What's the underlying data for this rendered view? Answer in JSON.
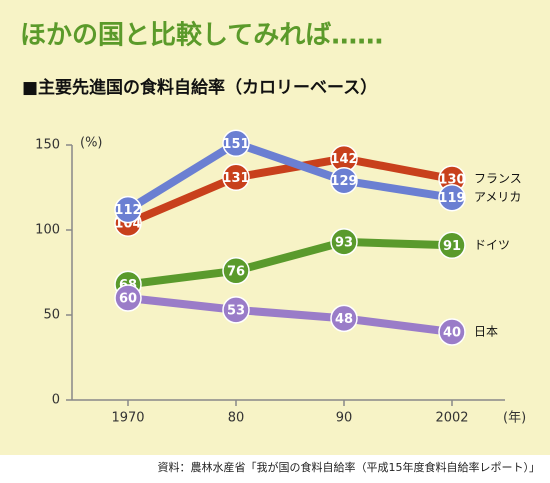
{
  "title": "ほかの国と比較してみれば……",
  "chart_data": {
    "type": "line",
    "subtitle": "■主要先進国の食料自給率（カロリーベース）",
    "ylabel": "(%)",
    "xlabel": "(年)",
    "categories": [
      "1970",
      "80",
      "90",
      "2002"
    ],
    "series": [
      {
        "name": "フランス",
        "color": "#c8401c",
        "values": [
          104,
          131,
          142,
          130
        ]
      },
      {
        "name": "アメリカ",
        "color": "#6b7fd2",
        "values": [
          112,
          151,
          129,
          119
        ]
      },
      {
        "name": "ドイツ",
        "color": "#5a9a2c",
        "values": [
          68,
          76,
          93,
          91
        ]
      },
      {
        "name": "日本",
        "color": "#9a7cc8",
        "values": [
          60,
          53,
          48,
          40
        ]
      }
    ],
    "ylim": [
      0,
      150
    ],
    "yticks": [
      0,
      50,
      100,
      150
    ]
  },
  "source": "資料：農林水産省「我が国の食料自給率（平成15年度食料自給率レポート）」"
}
